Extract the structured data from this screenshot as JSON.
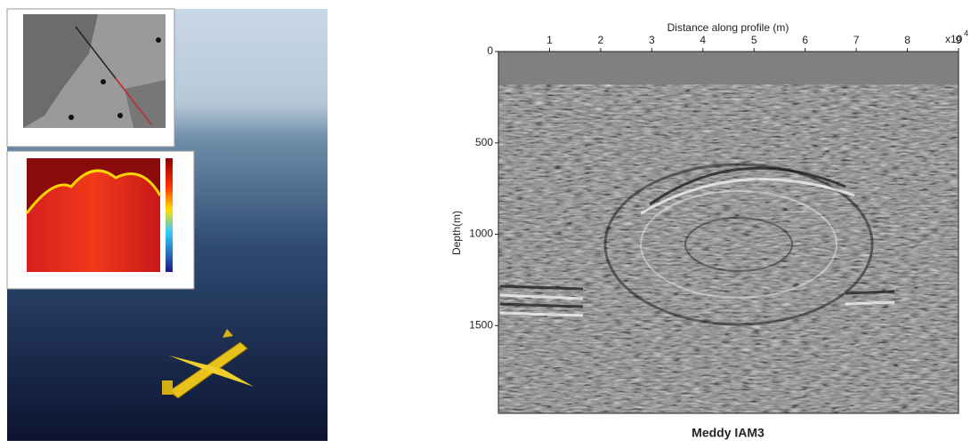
{
  "chart_data": {
    "type": "seismic",
    "title": "Meddy IAM3",
    "xlabel": "Distance along profile (m)",
    "ylabel": "Depth(m)",
    "x_multiplier": "x10",
    "x_exponent": "4",
    "xlim": [
      0,
      9
    ],
    "xticks": [
      1,
      2,
      3,
      4,
      5,
      6,
      7,
      8,
      9
    ],
    "ylim": [
      0,
      1980
    ],
    "yticks": [
      0,
      500,
      1000,
      1500
    ],
    "y_inverted": true
  }
}
